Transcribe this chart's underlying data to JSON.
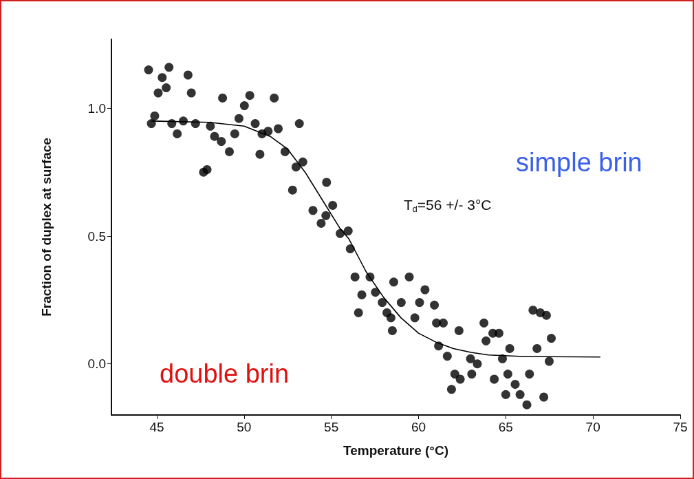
{
  "chart_data": {
    "type": "scatter",
    "xlabel": "Temperature (°C)",
    "ylabel": "Fraction of duplex at surface",
    "annotations": [
      "T$_{d}$=56 +/- 3°C",
      "simple brin",
      "double brin"
    ],
    "xlim": [
      42.4,
      75
    ],
    "xticks": [
      45,
      50,
      55,
      60,
      65,
      70,
      75
    ],
    "ylim": [
      -0.2,
      1.27
    ],
    "yticks": [
      {
        "value": 0,
        "label": "0.0"
      },
      {
        "value": 0.5,
        "label": "0.5"
      },
      {
        "value": 1,
        "label": "1.0"
      }
    ],
    "grid": false,
    "marker": "circle",
    "series": [
      {
        "color": "#000000",
        "x": [
          44.53,
          44.69,
          44.88,
          45.08,
          45.31,
          45.54,
          45.7,
          45.86,
          46.17,
          46.52,
          46.79,
          46.98,
          47.22,
          47.68,
          47.88,
          48.07,
          48.31,
          48.7,
          48.77,
          49.16,
          49.47,
          49.71,
          50.02,
          50.33,
          50.64,
          50.91,
          51.03,
          51.38,
          51.73,
          51.96,
          52.35,
          52.78,
          52.98,
          53.17,
          53.37,
          53.95,
          54.42,
          54.69,
          54.73,
          55.08,
          55.51,
          55.97,
          56.09,
          56.36,
          56.56,
          56.75,
          57.22,
          57.53,
          57.92,
          58.19,
          58.42,
          58.5,
          58.58,
          59.01,
          59.47,
          59.79,
          60.06,
          60.37,
          60.91,
          61.03,
          61.15,
          61.42,
          61.65,
          61.89,
          62.08,
          62.32,
          62.39,
          62.98,
          63.05,
          63.37,
          63.75,
          63.87,
          64.26,
          64.34,
          64.61,
          64.81,
          65,
          65.12,
          65.23,
          65.54,
          65.82,
          66.21,
          66.36,
          66.56,
          66.79,
          66.98,
          67.18,
          67.33,
          67.49,
          67.61
        ],
        "values": [
          1.15,
          0.94,
          0.97,
          1.06,
          1.12,
          1.08,
          1.16,
          0.94,
          0.9,
          0.95,
          1.13,
          1.06,
          0.94,
          0.75,
          0.76,
          0.93,
          0.89,
          0.87,
          1.04,
          0.83,
          0.9,
          0.96,
          1.01,
          1.05,
          0.94,
          0.82,
          0.9,
          0.91,
          1.04,
          0.92,
          0.83,
          0.68,
          0.77,
          0.94,
          0.79,
          0.6,
          0.55,
          0.58,
          0.71,
          0.62,
          0.51,
          0.52,
          0.45,
          0.34,
          0.2,
          0.27,
          0.34,
          0.28,
          0.24,
          0.2,
          0.18,
          0.13,
          0.32,
          0.24,
          0.34,
          0.18,
          0.24,
          0.29,
          0.23,
          0.16,
          0.07,
          0.16,
          0.03,
          -0.1,
          -0.04,
          0.13,
          -0.06,
          0.02,
          -0.04,
          0.0,
          0.16,
          0.09,
          0.12,
          -0.06,
          0.12,
          0.02,
          -0.12,
          -0.04,
          0.06,
          -0.08,
          -0.12,
          -0.16,
          -0.04,
          0.21,
          0.06,
          0.2,
          -0.13,
          0.19,
          0.01,
          0.1
        ]
      },
      {
        "type": "line",
        "color": "#000000",
        "marker": "none",
        "line_style": "solid",
        "x": [
          44.7,
          48,
          50,
          51.5,
          52.5,
          53.5,
          54.5,
          55.5,
          56,
          57,
          58,
          59,
          60,
          61,
          62,
          63,
          64,
          66,
          70.4
        ],
        "values": [
          0.95,
          0.945,
          0.93,
          0.89,
          0.84,
          0.75,
          0.64,
          0.53,
          0.49,
          0.36,
          0.26,
          0.18,
          0.12,
          0.085,
          0.06,
          0.045,
          0.035,
          0.029,
          0.027
        ]
      }
    ]
  }
}
